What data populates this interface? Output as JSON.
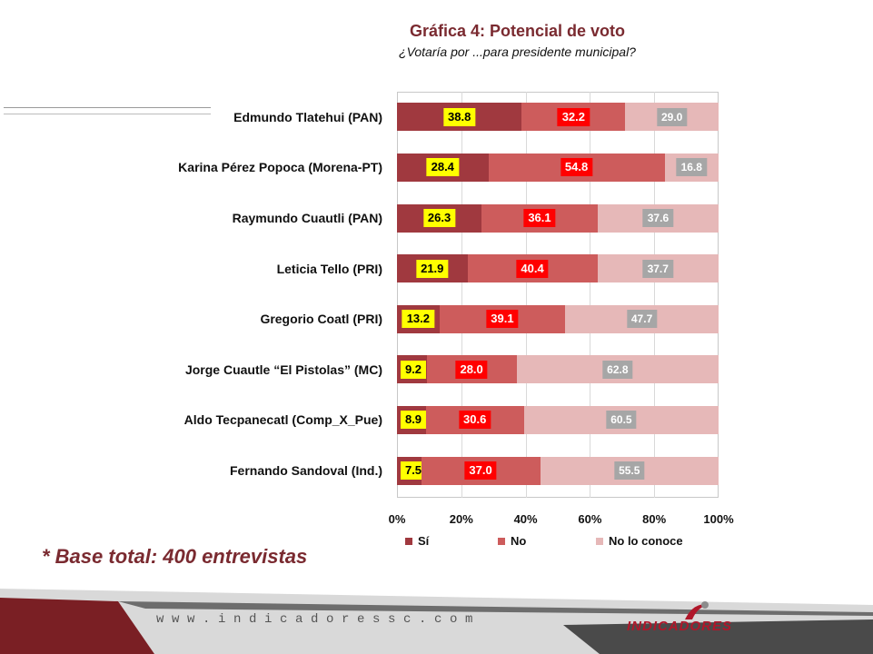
{
  "header": {
    "title": "Gráfica 4: Potencial de voto",
    "subtitle": "¿Votaría por ...para presidente municipal?"
  },
  "chart_data": {
    "type": "bar",
    "orientation": "horizontal",
    "stacked": "percent",
    "categories": [
      "Edmundo Tlatehui (PAN)",
      "Karina Pérez Popoca (Morena-PT)",
      "Raymundo Cuautli  (PAN)",
      "Leticia Tello (PRI)",
      "Gregorio Coatl (PRI)",
      "Jorge Cuautle “El Pistolas” (MC)",
      "Aldo Tecpanecatl (Comp_X_Pue)",
      "Fernando Sandoval (Ind.)"
    ],
    "series": [
      {
        "name": "Sí",
        "values": [
          38.8,
          28.4,
          26.3,
          21.9,
          13.2,
          9.2,
          8.9,
          7.5
        ],
        "color": "#a0393f"
      },
      {
        "name": "No",
        "values": [
          32.2,
          54.8,
          36.1,
          40.4,
          39.1,
          28.0,
          30.6,
          37.0
        ],
        "color": "#cd5c5c"
      },
      {
        "name": "No lo conoce",
        "values": [
          29.0,
          16.8,
          37.6,
          37.7,
          47.7,
          62.8,
          60.5,
          55.5
        ],
        "color": "#e6b8b8"
      }
    ],
    "value_labels": [
      [
        "38.8",
        "32.2",
        "29.0"
      ],
      [
        "28.4",
        "54.8",
        "16.8"
      ],
      [
        "26.3",
        "36.1",
        "37.6"
      ],
      [
        "21.9",
        "40.4",
        "37.7"
      ],
      [
        "13.2",
        "39.1",
        "47.7"
      ],
      [
        "9.2",
        "28.0",
        "62.8"
      ],
      [
        "8.9",
        "30.6",
        "60.5"
      ],
      [
        "7.5",
        "37.0",
        "55.5"
      ]
    ],
    "x_ticks": [
      "0%",
      "20%",
      "40%",
      "60%",
      "80%",
      "100%"
    ],
    "xlim": [
      0,
      100
    ],
    "legend_position": "bottom"
  },
  "note": "* Base total: 400 entrevistas",
  "footer": {
    "url": "www.indicadoressc.com",
    "logo_text": "INDICADORES"
  },
  "colors": {
    "accent": "#7a2a30",
    "si_label_bg": "#ffff00",
    "no_label_bg": "#ff0000",
    "nc_label_bg": "#a6a6a6"
  }
}
